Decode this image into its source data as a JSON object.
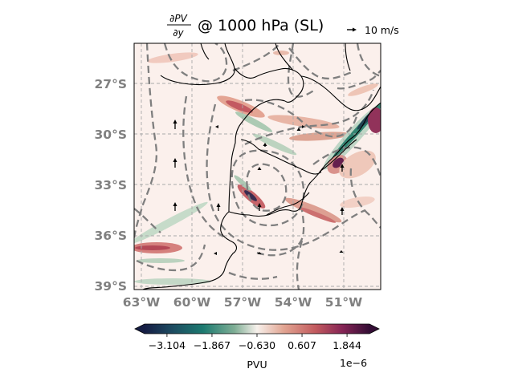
{
  "title": {
    "fraction_numerator": "∂PV",
    "fraction_denominator": "∂y",
    "rest": "@ 1000 hPa (SL)"
  },
  "quiver_key": {
    "label": "10 m/s"
  },
  "map": {
    "lat_labels": [
      "27°S",
      "30°S",
      "33°S",
      "36°S",
      "39°S"
    ],
    "lon_labels": [
      "63°W",
      "60°W",
      "57°W",
      "54°W",
      "51°W"
    ],
    "label_color": "#808080",
    "contour_color": "#808080",
    "coast_color": "#000000",
    "gridline_style": "dashed"
  },
  "colorbar": {
    "ticks": [
      "−3.104",
      "−1.867",
      "−0.630",
      "0.607",
      "1.844"
    ],
    "tick_values": [
      -3.104,
      -1.867,
      -0.63,
      0.607,
      1.844
    ],
    "range": [
      -3.72,
      2.46
    ],
    "label": "PVU",
    "exponent": "1e−6",
    "colormap": "curl",
    "extend": "both"
  }
}
